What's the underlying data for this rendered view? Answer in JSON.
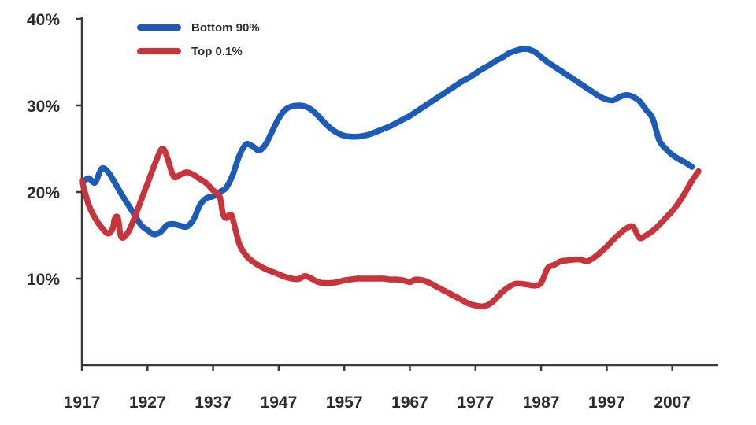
{
  "chart_data": {
    "type": "line",
    "title": "",
    "xlabel": "",
    "ylabel": "",
    "xlim": [
      1917,
      2012
    ],
    "ylim": [
      0,
      40
    ],
    "grid": false,
    "legend_position": "top-left",
    "x_ticks": [
      1917,
      1927,
      1937,
      1947,
      1957,
      1967,
      1977,
      1987,
      1997,
      2007
    ],
    "x_tick_labels": [
      "1917",
      "1927",
      "1937",
      "1947",
      "1957",
      "1967",
      "1977",
      "1987",
      "1997",
      "2007"
    ],
    "y_ticks": [
      10,
      20,
      30,
      40
    ],
    "y_tick_labels": [
      "10%",
      "20%",
      "30%",
      "40%"
    ],
    "series": [
      {
        "name": "Bottom 90%",
        "color": "#1a5cb8",
        "points": [
          [
            1917,
            21.0
          ],
          [
            1918,
            21.6
          ],
          [
            1919,
            21.1
          ],
          [
            1920,
            22.7
          ],
          [
            1921,
            22.3
          ],
          [
            1922,
            21.1
          ],
          [
            1923,
            19.8
          ],
          [
            1924,
            18.6
          ],
          [
            1925,
            17.4
          ],
          [
            1926,
            16.2
          ],
          [
            1927,
            15.6
          ],
          [
            1928,
            15.1
          ],
          [
            1929,
            15.4
          ],
          [
            1930,
            16.2
          ],
          [
            1931,
            16.3
          ],
          [
            1932,
            16.1
          ],
          [
            1933,
            16.0
          ],
          [
            1934,
            16.8
          ],
          [
            1935,
            18.5
          ],
          [
            1936,
            19.3
          ],
          [
            1937,
            19.5
          ],
          [
            1938,
            20.0
          ],
          [
            1939,
            20.5
          ],
          [
            1940,
            22.0
          ],
          [
            1941,
            24.2
          ],
          [
            1942,
            25.5
          ],
          [
            1943,
            25.3
          ],
          [
            1944,
            24.8
          ],
          [
            1945,
            25.5
          ],
          [
            1946,
            27.0
          ],
          [
            1947,
            28.5
          ],
          [
            1948,
            29.5
          ],
          [
            1949,
            29.9
          ],
          [
            1950,
            30.0
          ],
          [
            1951,
            29.9
          ],
          [
            1952,
            29.5
          ],
          [
            1953,
            28.8
          ],
          [
            1954,
            28.0
          ],
          [
            1955,
            27.3
          ],
          [
            1956,
            26.8
          ],
          [
            1957,
            26.5
          ],
          [
            1958,
            26.4
          ],
          [
            1959,
            26.4
          ],
          [
            1960,
            26.5
          ],
          [
            1961,
            26.7
          ],
          [
            1962,
            27.0
          ],
          [
            1963,
            27.3
          ],
          [
            1964,
            27.6
          ],
          [
            1965,
            28.0
          ],
          [
            1966,
            28.4
          ],
          [
            1967,
            28.8
          ],
          [
            1968,
            29.3
          ],
          [
            1969,
            29.8
          ],
          [
            1970,
            30.3
          ],
          [
            1971,
            30.8
          ],
          [
            1972,
            31.3
          ],
          [
            1973,
            31.8
          ],
          [
            1974,
            32.3
          ],
          [
            1975,
            32.8
          ],
          [
            1976,
            33.2
          ],
          [
            1977,
            33.7
          ],
          [
            1978,
            34.2
          ],
          [
            1979,
            34.6
          ],
          [
            1980,
            35.1
          ],
          [
            1981,
            35.5
          ],
          [
            1982,
            36.0
          ],
          [
            1983,
            36.3
          ],
          [
            1984,
            36.5
          ],
          [
            1985,
            36.5
          ],
          [
            1986,
            36.2
          ],
          [
            1987,
            35.6
          ],
          [
            1988,
            35.0
          ],
          [
            1989,
            34.5
          ],
          [
            1990,
            34.0
          ],
          [
            1991,
            33.5
          ],
          [
            1992,
            33.0
          ],
          [
            1993,
            32.5
          ],
          [
            1994,
            32.0
          ],
          [
            1995,
            31.5
          ],
          [
            1996,
            31.0
          ],
          [
            1997,
            30.7
          ],
          [
            1998,
            30.6
          ],
          [
            1999,
            31.0
          ],
          [
            2000,
            31.2
          ],
          [
            2001,
            31.0
          ],
          [
            2002,
            30.5
          ],
          [
            2003,
            29.5
          ],
          [
            2004,
            28.5
          ],
          [
            2005,
            26.0
          ],
          [
            2006,
            25.0
          ],
          [
            2007,
            24.3
          ],
          [
            2008,
            23.8
          ],
          [
            2009,
            23.4
          ],
          [
            2010,
            22.9
          ]
        ]
      },
      {
        "name": "Top 0.1%",
        "color": "#c8343a",
        "points": [
          [
            1917,
            21.3
          ],
          [
            1918,
            18.6
          ],
          [
            1919,
            17.0
          ],
          [
            1920,
            15.9
          ],
          [
            1921,
            15.2
          ],
          [
            1921.7,
            15.8
          ],
          [
            1922,
            16.9
          ],
          [
            1922.5,
            17.0
          ],
          [
            1923,
            14.8
          ],
          [
            1924,
            15.3
          ],
          [
            1925,
            17.0
          ],
          [
            1926,
            19.0
          ],
          [
            1927,
            21.0
          ],
          [
            1928,
            23.0
          ],
          [
            1929,
            24.8
          ],
          [
            1929.5,
            24.9
          ],
          [
            1930,
            24.0
          ],
          [
            1931,
            21.8
          ],
          [
            1932,
            22.0
          ],
          [
            1933,
            22.3
          ],
          [
            1934,
            22.0
          ],
          [
            1935,
            21.5
          ],
          [
            1936,
            21.0
          ],
          [
            1937,
            20.2
          ],
          [
            1938,
            19.5
          ],
          [
            1938.5,
            17.5
          ],
          [
            1939,
            17.0
          ],
          [
            1939.6,
            17.4
          ],
          [
            1940,
            16.9
          ],
          [
            1941,
            14.0
          ],
          [
            1942,
            12.7
          ],
          [
            1943,
            12.0
          ],
          [
            1944,
            11.5
          ],
          [
            1945,
            11.1
          ],
          [
            1946,
            10.8
          ],
          [
            1947,
            10.5
          ],
          [
            1948,
            10.2
          ],
          [
            1949,
            10.0
          ],
          [
            1950,
            9.95
          ],
          [
            1951,
            10.3
          ],
          [
            1952,
            10.0
          ],
          [
            1953,
            9.6
          ],
          [
            1954,
            9.5
          ],
          [
            1955,
            9.5
          ],
          [
            1956,
            9.6
          ],
          [
            1957,
            9.8
          ],
          [
            1958,
            9.9
          ],
          [
            1959,
            10.0
          ],
          [
            1960,
            10.0
          ],
          [
            1961,
            10.0
          ],
          [
            1962,
            10.0
          ],
          [
            1963,
            10.0
          ],
          [
            1964,
            9.9
          ],
          [
            1965,
            9.9
          ],
          [
            1966,
            9.8
          ],
          [
            1967,
            9.6
          ],
          [
            1967.5,
            9.8
          ],
          [
            1968,
            9.9
          ],
          [
            1969,
            9.8
          ],
          [
            1970,
            9.5
          ],
          [
            1971,
            9.1
          ],
          [
            1972,
            8.7
          ],
          [
            1973,
            8.3
          ],
          [
            1974,
            7.9
          ],
          [
            1975,
            7.5
          ],
          [
            1976,
            7.1
          ],
          [
            1977,
            6.9
          ],
          [
            1978,
            6.8
          ],
          [
            1979,
            7.0
          ],
          [
            1980,
            7.6
          ],
          [
            1981,
            8.4
          ],
          [
            1982,
            9.0
          ],
          [
            1983,
            9.4
          ],
          [
            1984,
            9.4
          ],
          [
            1985,
            9.3
          ],
          [
            1986,
            9.2
          ],
          [
            1987,
            9.5
          ],
          [
            1988,
            11.2
          ],
          [
            1989,
            11.6
          ],
          [
            1990,
            12.0
          ],
          [
            1991,
            12.1
          ],
          [
            1992,
            12.2
          ],
          [
            1993,
            12.2
          ],
          [
            1994,
            12.0
          ],
          [
            1995,
            12.4
          ],
          [
            1996,
            13.0
          ],
          [
            1997,
            13.7
          ],
          [
            1998,
            14.5
          ],
          [
            1999,
            15.2
          ],
          [
            2000,
            15.8
          ],
          [
            2001,
            16.0
          ],
          [
            2002,
            14.7
          ],
          [
            2003,
            15.0
          ],
          [
            2004,
            15.5
          ],
          [
            2005,
            16.2
          ],
          [
            2006,
            17.0
          ],
          [
            2007,
            17.8
          ],
          [
            2008,
            18.8
          ],
          [
            2009,
            20.0
          ],
          [
            2010,
            21.3
          ],
          [
            2011,
            22.4
          ]
        ]
      }
    ]
  }
}
